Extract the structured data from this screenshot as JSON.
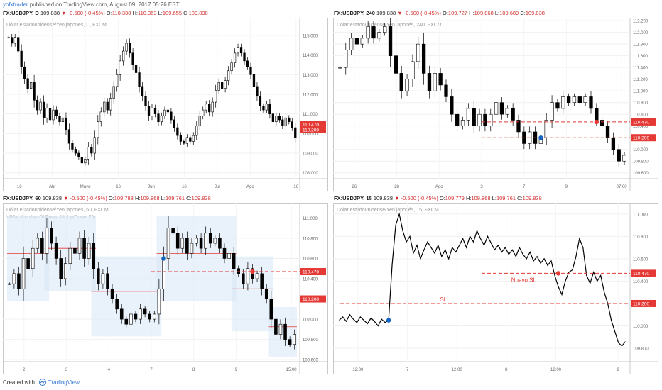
{
  "header": {
    "user": "yofxtrader",
    "published": "published on TradingView.com, August 09, 2017 05:26 EST"
  },
  "footer": {
    "created_with": "Created with",
    "brand": "TradingView"
  },
  "colors": {
    "up": "#ffffff",
    "down": "#000000",
    "wick": "#000000",
    "redline": "#e53935",
    "price_tag": "#e53935",
    "blue_dot": "#1565c0",
    "vp_fill": "#dbe7f7"
  },
  "chart_data": [
    {
      "id": "daily",
      "type": "candlestick",
      "symbol": "FX:USDJPY, D",
      "last": "109.838",
      "change": "-0.500 (-0.45%)",
      "open": "110.338",
      "high": "110.363",
      "low": "109.655",
      "close": "109.838",
      "subtitle": "Dólar estadounidense/Yen japonés, D, FXCM",
      "yticks": [
        "115.000",
        "114.000",
        "113.000",
        "112.000",
        "111.000",
        "110.000",
        "109.000",
        "108.000"
      ],
      "ylim": [
        107.7,
        115.9
      ],
      "xticks": [
        "16",
        "Abr",
        "Mayo",
        "16",
        "Jun",
        "16",
        "Jul",
        "Ago",
        "16"
      ],
      "price_tags": [
        "110.470",
        "110.200"
      ],
      "path": [
        114.9,
        114.6,
        114.9,
        114.2,
        113.4,
        112.8,
        112.3,
        112.6,
        111.7,
        111.2,
        111.6,
        110.8,
        111.3,
        110.7,
        111.2,
        110.9,
        110.6,
        110.8,
        110.2,
        109.5,
        109.2,
        109.0,
        108.8,
        108.5,
        108.7,
        109.3,
        109.0,
        109.8,
        110.6,
        111.1,
        111.6,
        111.2,
        111.8,
        112.4,
        113.0,
        113.7,
        114.2,
        114.6,
        114.1,
        113.5,
        113.1,
        112.4,
        111.9,
        111.4,
        110.9,
        111.3,
        111.0,
        110.6,
        110.9,
        111.2,
        111.1,
        110.7,
        110.3,
        109.9,
        109.6,
        109.5,
        109.8,
        109.6,
        109.9,
        110.4,
        110.9,
        111.2,
        111.5,
        111.1,
        111.6,
        112.2,
        112.6,
        112.3,
        112.7,
        113.2,
        113.6,
        114.1,
        114.4,
        114.1,
        113.7,
        113.4,
        113.0,
        112.4,
        111.9,
        111.4,
        111.2,
        111.5,
        111.0,
        110.6,
        110.9,
        110.7,
        110.4,
        110.8,
        110.6,
        110.3,
        109.8
      ]
    },
    {
      "id": "h4",
      "type": "candlestick",
      "symbol": "FX:USDJPY, 240",
      "last": "109.838",
      "change": "-0.500 (-0.45%)",
      "open": "109.727",
      "high": "109.868",
      "low": "109.689",
      "close": "109.838",
      "subtitle": "Dólar estadounidense/Yen japonés, 240, FXCM",
      "yticks": [
        "112.200",
        "112.000",
        "111.800",
        "111.600",
        "111.400",
        "111.200",
        "111.000",
        "110.800",
        "110.600",
        "110.400",
        "110.200",
        "110.000",
        "109.800",
        "109.600"
      ],
      "ylim": [
        109.5,
        112.25
      ],
      "xticks": [
        "26",
        "28",
        "Ago",
        "3",
        "7",
        "9",
        "07:00"
      ],
      "price_tags": [
        "110.470",
        "110.200"
      ],
      "path": [
        111.4,
        111.7,
        111.9,
        111.8,
        111.9,
        112.1,
        111.9,
        112.0,
        112.1,
        111.6,
        111.3,
        111.0,
        111.2,
        111.5,
        111.8,
        111.3,
        111.0,
        111.3,
        111.1,
        110.9,
        110.6,
        110.4,
        110.5,
        110.7,
        110.4,
        110.6,
        110.4,
        110.6,
        110.8,
        110.6,
        110.7,
        110.5,
        110.3,
        110.1,
        110.3,
        110.1,
        110.2,
        110.5,
        110.8,
        110.7,
        110.9,
        110.8,
        110.9,
        110.8,
        110.9,
        110.7,
        110.5,
        110.4,
        110.2,
        110.0,
        109.8,
        109.9
      ],
      "blue_dot_index": 36,
      "red_dot_index": 46
    },
    {
      "id": "h1",
      "type": "candlestick",
      "symbol": "FX:USDJPY, 60",
      "last": "109.838",
      "change": "-0.500 (-0.45%)",
      "open": "109.788",
      "high": "109.868",
      "low": "109.761",
      "close": "109.838",
      "subtitle": "Dólar estadounidense/Yen japonés, 60, FXCM",
      "indicator": "VPSV (Number Of Rows, 24, Up/Down, 70)",
      "yticks": [
        "111.000",
        "110.800",
        "110.600",
        "110.400",
        "110.200",
        "110.000",
        "109.800",
        "109.600"
      ],
      "ylim": [
        109.58,
        111.15
      ],
      "xticks": [
        "2",
        "3",
        "4",
        "7",
        "8",
        "9",
        "15:00"
      ],
      "price_tags": [
        "110.470",
        "110.200"
      ],
      "path": [
        110.35,
        110.45,
        110.3,
        110.6,
        110.5,
        110.7,
        110.8,
        110.65,
        110.9,
        110.75,
        110.6,
        110.4,
        110.55,
        110.7,
        110.65,
        110.8,
        110.6,
        110.75,
        110.5,
        110.35,
        110.45,
        110.3,
        110.2,
        110.1,
        110.0,
        109.95,
        110.05,
        110.0,
        110.1,
        110.05,
        110.0,
        110.05,
        110.3,
        110.6,
        110.9,
        110.85,
        110.7,
        110.8,
        110.65,
        110.75,
        110.8,
        110.7,
        110.85,
        110.75,
        110.8,
        110.7,
        110.6,
        110.65,
        110.5,
        110.45,
        110.35,
        110.5,
        110.4,
        110.45,
        110.3,
        110.2,
        110.0,
        109.85,
        109.95,
        109.8,
        109.75,
        109.85
      ],
      "blue_dot_index": 33,
      "red_dot_index": 52
    },
    {
      "id": "m15",
      "type": "line",
      "symbol": "FX:USDJPY, 15",
      "last": "109.838",
      "change": "-0.500 (-0.45%)",
      "open": "109.779",
      "high": "109.868",
      "low": "109.761",
      "close": "109.838",
      "subtitle": "Dólar estadounidense/Yen japonés, 15, FXCM",
      "yticks": [
        "111.000",
        "110.800",
        "110.600",
        "110.400",
        "110.200",
        "110.000",
        "109.800"
      ],
      "ylim": [
        109.68,
        111.1
      ],
      "xticks": [
        "12:00",
        "7",
        "12:00",
        "8",
        "12:00",
        "9"
      ],
      "price_tags": [
        "110.470",
        "110.200"
      ],
      "annotations": [
        "Nuevo SL",
        "SL"
      ],
      "path": [
        110.05,
        110.08,
        110.04,
        110.1,
        110.06,
        110.03,
        110.08,
        110.05,
        110.02,
        110.07,
        110.04,
        110.0,
        110.06,
        110.03,
        110.05,
        110.55,
        110.9,
        111.0,
        110.85,
        110.75,
        110.8,
        110.65,
        110.72,
        110.6,
        110.68,
        110.75,
        110.7,
        110.65,
        110.72,
        110.62,
        110.68,
        110.6,
        110.7,
        110.66,
        110.72,
        110.78,
        110.7,
        110.8,
        110.75,
        110.85,
        110.78,
        110.72,
        110.8,
        110.74,
        110.68,
        110.72,
        110.66,
        110.7,
        110.64,
        110.68,
        110.62,
        110.7,
        110.64,
        110.6,
        110.66,
        110.58,
        110.62,
        110.56,
        110.6,
        110.54,
        110.58,
        110.45,
        110.35,
        110.28,
        110.4,
        110.48,
        110.5,
        110.62,
        110.78,
        110.7,
        110.45,
        110.38,
        110.48,
        110.4,
        110.45,
        110.3,
        110.2,
        110.05,
        109.95,
        109.85,
        109.82,
        109.86
      ],
      "blue_dot_index": 14,
      "red_dot_index": 62
    }
  ]
}
